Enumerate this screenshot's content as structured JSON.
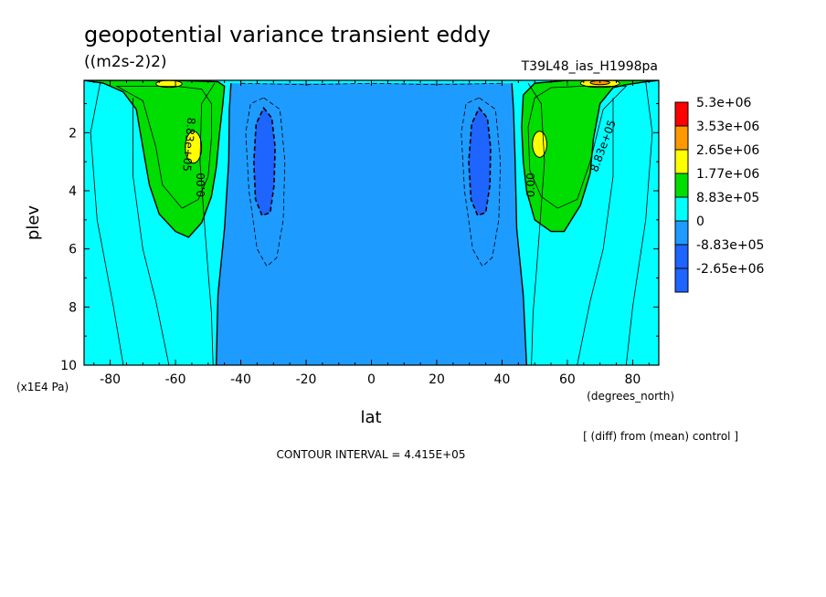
{
  "title": "geopotential variance transient eddy",
  "units": "((m2s-2)2)",
  "run_label": "T39L48_ias_H1998pa",
  "diff_note": "[ (diff) from (mean) control ]",
  "contour_interval": "CONTOUR INTERVAL = 4.415E+05",
  "chart_data": {
    "type": "contour",
    "title": "geopotential variance transient eddy",
    "xlabel": "lat",
    "x_unit_label": "(degrees_north)",
    "ylabel": "plev",
    "y_unit_label": "(x1E4 Pa)",
    "xlim": [
      -88,
      88
    ],
    "ylim": [
      10,
      0.2
    ],
    "x_ticks": [
      {
        "value": -80,
        "label": "-80"
      },
      {
        "value": -60,
        "label": "-60"
      },
      {
        "value": -40,
        "label": "-40"
      },
      {
        "value": -20,
        "label": "-20"
      },
      {
        "value": 0,
        "label": "0"
      },
      {
        "value": 20,
        "label": "20"
      },
      {
        "value": 40,
        "label": "40"
      },
      {
        "value": 60,
        "label": "60"
      },
      {
        "value": 80,
        "label": "80"
      }
    ],
    "y_ticks": [
      {
        "value": 2,
        "label": "2"
      },
      {
        "value": 4,
        "label": "4"
      },
      {
        "value": 6,
        "label": "6"
      },
      {
        "value": 8,
        "label": "8"
      },
      {
        "value": 10,
        "label": "10"
      }
    ],
    "levels": [
      {
        "label": "5.3e+06",
        "color": "#ff0000"
      },
      {
        "label": "3.53e+06",
        "color": "#ff9900"
      },
      {
        "label": "2.65e+06",
        "color": "#ffff00"
      },
      {
        "label": "1.77e+06",
        "color": "#00dd00"
      },
      {
        "label": "8.83e+05",
        "color": "#00ffff"
      },
      {
        "label": "0",
        "color": "#1e9bff"
      },
      {
        "label": "-8.83e+05",
        "color": "#1e64ff"
      },
      {
        "label": "-2.65e+06",
        "color": "#1e64ff"
      }
    ],
    "colors": {
      "neg_low": "#1e64ff",
      "neg": "#1e9bff",
      "zero_pos": "#00ffff",
      "pos1": "#00dd00",
      "pos2": "#ffff00",
      "pos3": "#ff9900",
      "pos4": "#ff0000"
    },
    "contour_labels": [
      {
        "text": "8.83e+05",
        "lat": -57,
        "plev": 2.4,
        "angle": 95
      },
      {
        "text": "0.00",
        "lat": -51,
        "plev": 3.8,
        "angle": -90
      },
      {
        "text": "0.00",
        "lat": 50,
        "plev": 3.8,
        "angle": -90
      },
      {
        "text": "8.83e+05",
        "lat": 72,
        "plev": 2.5,
        "angle": -70
      }
    ]
  }
}
